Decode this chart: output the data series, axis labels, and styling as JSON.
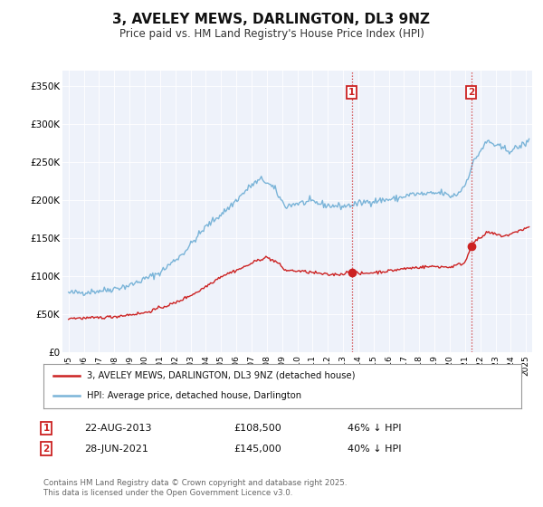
{
  "title": "3, AVELEY MEWS, DARLINGTON, DL3 9NZ",
  "subtitle": "Price paid vs. HM Land Registry's House Price Index (HPI)",
  "title_fontsize": 11,
  "subtitle_fontsize": 8.5,
  "background_color": "#ffffff",
  "plot_bg_color": "#eef2fa",
  "hpi_color": "#7ab4d8",
  "price_color": "#cc2222",
  "vline_color": "#cc2222",
  "annotation1": [
    "22-AUG-2013",
    "£108,500",
    "46% ↓ HPI"
  ],
  "annotation2": [
    "28-JUN-2021",
    "£145,000",
    "40% ↓ HPI"
  ],
  "legend_label_price": "3, AVELEY MEWS, DARLINGTON, DL3 9NZ (detached house)",
  "legend_label_hpi": "HPI: Average price, detached house, Darlington",
  "footer": "Contains HM Land Registry data © Crown copyright and database right 2025.\nThis data is licensed under the Open Government Licence v3.0.",
  "ylim": [
    0,
    370000
  ],
  "yticks": [
    0,
    50000,
    100000,
    150000,
    200000,
    250000,
    300000,
    350000
  ],
  "ytick_labels": [
    "£0",
    "£50K",
    "£100K",
    "£150K",
    "£200K",
    "£250K",
    "£300K",
    "£350K"
  ]
}
